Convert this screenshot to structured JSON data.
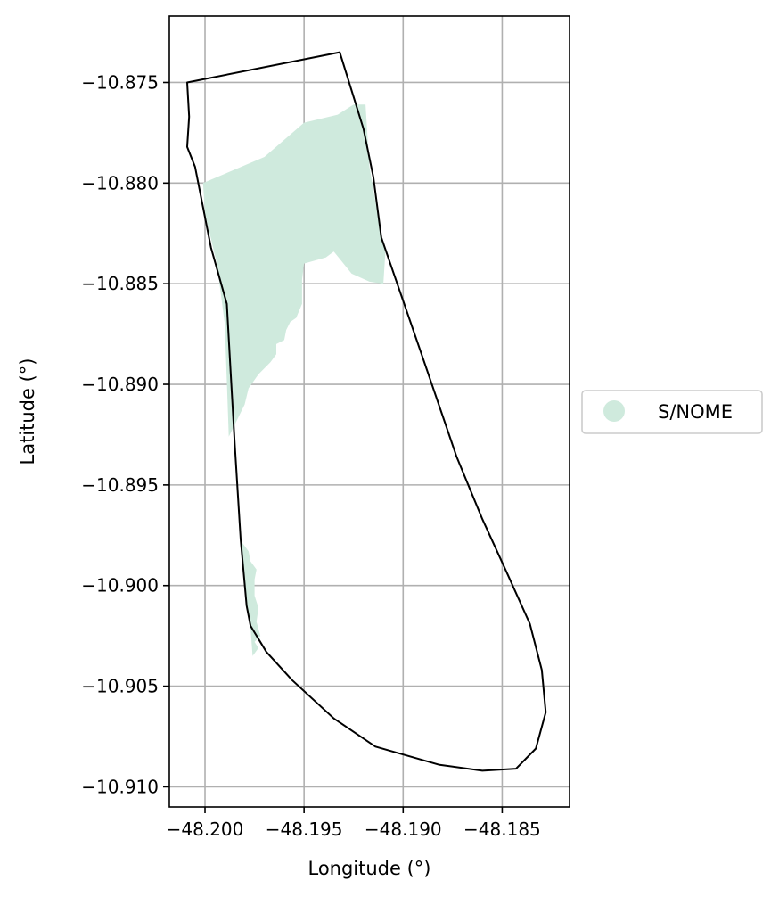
{
  "chart_data": {
    "type": "map",
    "xlabel": "Longitude (°)",
    "ylabel": "Latitude (°)",
    "xlim": [
      -48.2018,
      -48.1816
    ],
    "ylim": [
      -10.911,
      -10.8717
    ],
    "xticks": [
      -48.2,
      -48.195,
      -48.19,
      -48.185
    ],
    "xtick_labels": [
      "−48.200",
      "−48.195",
      "−48.190",
      "−48.185"
    ],
    "yticks": [
      -10.875,
      -10.88,
      -10.885,
      -10.89,
      -10.895,
      -10.9,
      -10.905,
      -10.91
    ],
    "ytick_labels": [
      "−10.875",
      "−10.880",
      "−10.885",
      "−10.890",
      "−10.895",
      "−10.900",
      "−10.905",
      "−10.910"
    ],
    "grid": true,
    "legend": {
      "placement": "center-right-outside",
      "entries": [
        {
          "label": "S/NOME",
          "color": "#cfeadd"
        }
      ]
    },
    "boundary": {
      "color": "#000000",
      "coords": [
        [
          -48.2009,
          -10.875
        ],
        [
          -48.1932,
          -10.8735
        ],
        [
          -48.192,
          -10.8773
        ],
        [
          -48.1915,
          -10.8797
        ],
        [
          -48.1911,
          -10.8827
        ],
        [
          -48.189,
          -10.8887
        ],
        [
          -48.1873,
          -10.8936
        ],
        [
          -48.186,
          -10.8967
        ],
        [
          -48.1847,
          -10.8995
        ],
        [
          -48.1836,
          -10.9019
        ],
        [
          -48.183,
          -10.9042
        ],
        [
          -48.1828,
          -10.9063
        ],
        [
          -48.1833,
          -10.9081
        ],
        [
          -48.1843,
          -10.9091
        ],
        [
          -48.186,
          -10.9092
        ],
        [
          -48.1882,
          -10.9089
        ],
        [
          -48.1914,
          -10.908
        ],
        [
          -48.1935,
          -10.9066
        ],
        [
          -48.1956,
          -10.9047
        ],
        [
          -48.1969,
          -10.9033
        ],
        [
          -48.1977,
          -10.902
        ],
        [
          -48.1979,
          -10.901
        ],
        [
          -48.1982,
          -10.8977
        ],
        [
          -48.1985,
          -10.893
        ],
        [
          -48.1987,
          -10.8895
        ],
        [
          -48.1989,
          -10.886
        ],
        [
          -48.1997,
          -10.8832
        ],
        [
          -48.2005,
          -10.8792
        ],
        [
          -48.2009,
          -10.8782
        ],
        [
          -48.2008,
          -10.8767
        ],
        [
          -48.2009,
          -10.875
        ]
      ]
    },
    "regions": [
      {
        "name": "S/NOME",
        "color": "#cfeadd",
        "coords": [
          [
            -48.2001,
            -10.88
          ],
          [
            -48.197,
            -10.8787
          ],
          [
            -48.195,
            -10.877
          ],
          [
            -48.1933,
            -10.8766
          ],
          [
            -48.1925,
            -10.8761
          ],
          [
            -48.1919,
            -10.8761
          ],
          [
            -48.1917,
            -10.8792
          ],
          [
            -48.1913,
            -10.8815
          ],
          [
            -48.1909,
            -10.8835
          ],
          [
            -48.191,
            -10.885
          ],
          [
            -48.1917,
            -10.8849
          ],
          [
            -48.1926,
            -10.8845
          ],
          [
            -48.1935,
            -10.8834
          ],
          [
            -48.1939,
            -10.8837
          ],
          [
            -48.195,
            -10.884
          ],
          [
            -48.1951,
            -10.8848
          ],
          [
            -48.1951,
            -10.886
          ],
          [
            -48.1954,
            -10.8867
          ],
          [
            -48.1957,
            -10.8869
          ],
          [
            -48.1959,
            -10.8873
          ],
          [
            -48.196,
            -10.8878
          ],
          [
            -48.1964,
            -10.888
          ],
          [
            -48.1964,
            -10.8885
          ],
          [
            -48.1967,
            -10.8889
          ],
          [
            -48.1973,
            -10.8895
          ],
          [
            -48.1978,
            -10.8902
          ],
          [
            -48.198,
            -10.891
          ],
          [
            -48.1985,
            -10.892
          ],
          [
            -48.1988,
            -10.8926
          ],
          [
            -48.199,
            -10.887
          ],
          [
            -48.1994,
            -10.884
          ],
          [
            -48.2,
            -10.8815
          ],
          [
            -48.2001,
            -10.88
          ]
        ]
      },
      {
        "name": "S/NOME",
        "color": "#cfeadd",
        "coords": [
          [
            -48.1981,
            -10.8979
          ],
          [
            -48.1978,
            -10.8983
          ],
          [
            -48.1977,
            -10.8988
          ],
          [
            -48.1974,
            -10.8992
          ],
          [
            -48.1975,
            -10.8997
          ],
          [
            -48.1975,
            -10.9005
          ],
          [
            -48.1973,
            -10.9011
          ],
          [
            -48.1974,
            -10.9018
          ],
          [
            -48.1972,
            -10.9025
          ],
          [
            -48.1975,
            -10.9028
          ],
          [
            -48.1973,
            -10.9031
          ],
          [
            -48.1976,
            -10.9035
          ],
          [
            -48.1977,
            -10.9021
          ],
          [
            -48.1979,
            -10.901
          ],
          [
            -48.1982,
            -10.8979
          ]
        ]
      }
    ]
  }
}
